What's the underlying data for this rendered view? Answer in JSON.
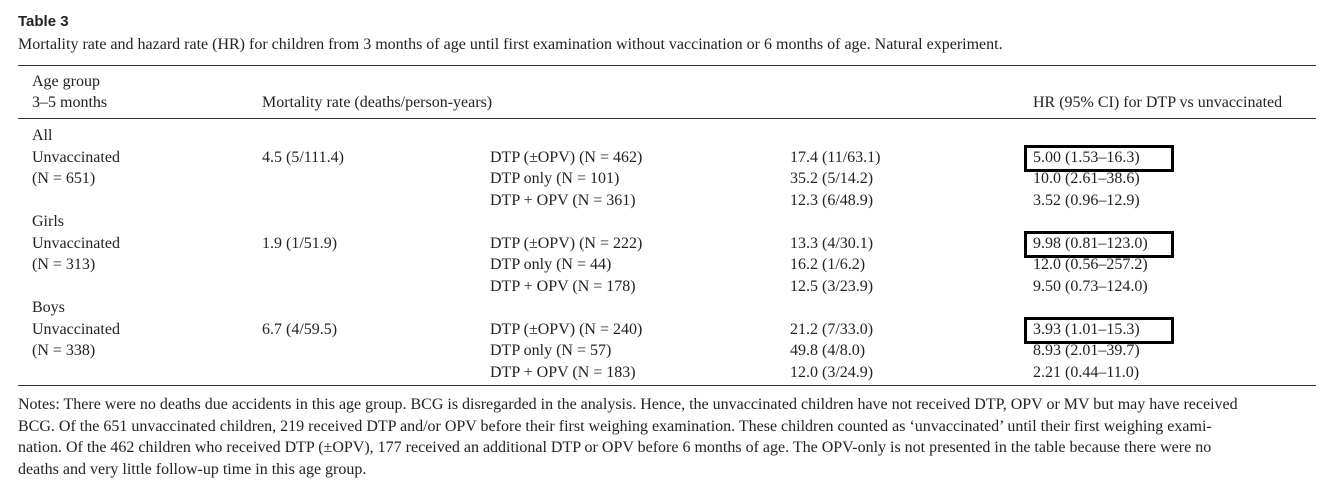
{
  "header": {
    "title": "Table 3",
    "caption": "Mortality rate and hazard rate (HR) for children from 3 months of age until first examination without vaccination or 6 months of age. Natural experiment."
  },
  "table": {
    "columns": {
      "age_group": [
        "Age group",
        "3–5 months"
      ],
      "mortality": "Mortality rate (deaths/person-years)",
      "hr": "HR (95% CI) for DTP vs unvaccinated"
    },
    "groups": [
      {
        "label": "All",
        "group": "Unvaccinated",
        "n": "(N = 651)",
        "rate": "4.5 (5/111.4)",
        "comparisons": [
          {
            "vaccine": "DTP (±OPV) (N = 462)",
            "rate": "17.4 (11/63.1)",
            "hr": "5.00 (1.53–16.3)",
            "highlighted": true
          },
          {
            "vaccine": "DTP only (N = 101)",
            "rate": "35.2 (5/14.2)",
            "hr": "10.0 (2.61–38.6)",
            "highlighted": false
          },
          {
            "vaccine": "DTP + OPV (N = 361)",
            "rate": "12.3 (6/48.9)",
            "hr": "3.52 (0.96–12.9)",
            "highlighted": false
          }
        ]
      },
      {
        "label": "Girls",
        "group": "Unvaccinated",
        "n": "(N = 313)",
        "rate": "1.9 (1/51.9)",
        "comparisons": [
          {
            "vaccine": "DTP (±OPV) (N = 222)",
            "rate": "13.3 (4/30.1)",
            "hr": "9.98 (0.81–123.0)",
            "highlighted": true
          },
          {
            "vaccine": "DTP only (N = 44)",
            "rate": "16.2 (1/6.2)",
            "hr": "12.0 (0.56–257.2)",
            "highlighted": false
          },
          {
            "vaccine": "DTP + OPV (N = 178)",
            "rate": "12.5 (3/23.9)",
            "hr": "9.50 (0.73–124.0)",
            "highlighted": false
          }
        ]
      },
      {
        "label": "Boys",
        "group": "Unvaccinated",
        "n": "(N = 338)",
        "rate": "6.7 (4/59.5)",
        "comparisons": [
          {
            "vaccine": "DTP (±OPV) (N = 240)",
            "rate": "21.2 (7/33.0)",
            "hr": "3.93 (1.01–15.3)",
            "highlighted": true
          },
          {
            "vaccine": "DTP only (N = 57)",
            "rate": "49.8 (4/8.0)",
            "hr": "8.93 (2.01–39.7)",
            "highlighted": false
          },
          {
            "vaccine": "DTP + OPV (N = 183)",
            "rate": "12.0 (3/24.9)",
            "hr": "2.21 (0.44–11.0)",
            "highlighted": false
          }
        ]
      }
    ]
  },
  "notes": {
    "lines": [
      "Notes: There were no deaths due accidents in this age group. BCG is disregarded in the analysis. Hence, the unvaccinated children have not received DTP, OPV or MV but may have received",
      "BCG. Of the 651 unvaccinated children, 219 received DTP and/or OPV before their first weighing examination. These children counted as ‘unvaccinated’ until their first weighing exami-",
      "nation. Of the 462 children who received DTP (±OPV), 177 received an additional DTP or OPV before 6 months of age. The OPV-only is not presented in the table because there were no",
      "deaths and very little follow-up time in this age group."
    ]
  }
}
